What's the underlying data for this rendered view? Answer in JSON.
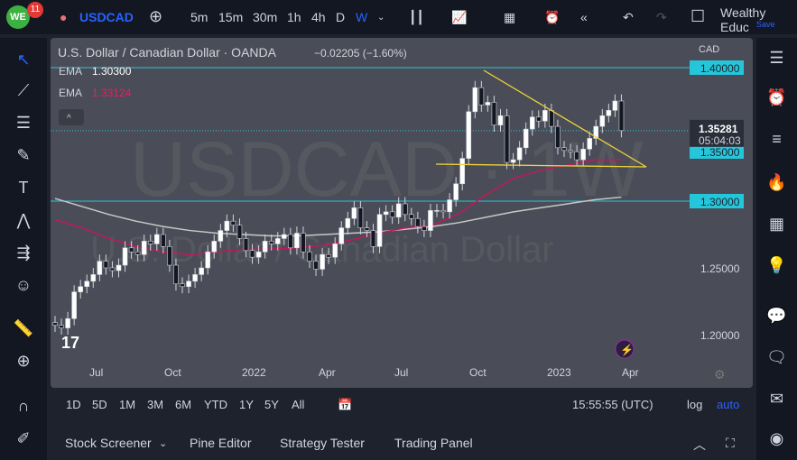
{
  "topbar": {
    "notifications": "11",
    "symbol": "USDCAD",
    "intervals": [
      "5m",
      "15m",
      "30m",
      "1h",
      "4h",
      "D",
      "W"
    ],
    "active_interval": "W",
    "user": "Wealthy Educ",
    "save": "Save",
    "accent": "#2962ff"
  },
  "legend": {
    "title": "U.S. Dollar / Canadian Dollar · OANDA",
    "change": "−0.02205 (−1.60%)",
    "ema1_label": "EMA",
    "ema1_value": "1.30300",
    "ema2_label": "EMA",
    "ema2_value": "1.33124"
  },
  "watermark": {
    "symbol": "USDCAD · 1W",
    "name": "U.S. Dollar / Canadian Dollar"
  },
  "price_axis": {
    "currency": "CAD",
    "labels": [
      "1.40000",
      "1.35000",
      "1.30000",
      "1.25000",
      "1.20000"
    ],
    "current_price": "1.35281",
    "countdown": "05:04:03"
  },
  "time_axis": [
    "Jul",
    "Oct",
    "2022",
    "Apr",
    "Jul",
    "Oct",
    "2023",
    "Apr"
  ],
  "timeframes": [
    "1D",
    "5D",
    "1M",
    "3M",
    "6M",
    "YTD",
    "1Y",
    "5Y",
    "All"
  ],
  "clock": "15:55:55 (UTC)",
  "log": "log",
  "auto": "auto",
  "bottom_tabs": [
    "Stock Screener",
    "Pine Editor",
    "Strategy Tester",
    "Trading Panel"
  ],
  "chart_data": {
    "type": "candlestick",
    "start": "2021-05-17",
    "interval": "1W",
    "ylim": [
      1.18,
      1.42
    ],
    "close": [
      1.207,
      1.205,
      1.212,
      1.232,
      1.236,
      1.24,
      1.245,
      1.255,
      1.25,
      1.248,
      1.252,
      1.265,
      1.262,
      1.26,
      1.27,
      1.268,
      1.275,
      1.266,
      1.252,
      1.238,
      1.236,
      1.24,
      1.245,
      1.25,
      1.262,
      1.27,
      1.278,
      1.285,
      1.282,
      1.272,
      1.263,
      1.258,
      1.262,
      1.27,
      1.268,
      1.272,
      1.275,
      1.265,
      1.276,
      1.262,
      1.255,
      1.249,
      1.26,
      1.258,
      1.268,
      1.28,
      1.287,
      1.295,
      1.28,
      1.278,
      1.266,
      1.29,
      1.292,
      1.288,
      1.298,
      1.29,
      1.287,
      1.281,
      1.278,
      1.293,
      1.293,
      1.292,
      1.301,
      1.313,
      1.332,
      1.367,
      1.385,
      1.372,
      1.374,
      1.357,
      1.364,
      1.329,
      1.331,
      1.34,
      1.354,
      1.363,
      1.36,
      1.368,
      1.356,
      1.34,
      1.338,
      1.337,
      1.331,
      1.339,
      1.347,
      1.356,
      1.364,
      1.368,
      1.375,
      1.35281
    ],
    "ema_white": [
      1.302,
      1.296,
      1.29,
      1.285,
      1.281,
      1.278,
      1.276,
      1.275,
      1.274,
      1.274,
      1.275,
      1.276,
      1.277,
      1.279,
      1.281,
      1.284,
      1.288,
      1.292,
      1.295,
      1.298,
      1.301,
      1.303
    ],
    "ema_pink": [
      1.286,
      1.28,
      1.272,
      1.266,
      1.262,
      1.26,
      1.262,
      1.264,
      1.264,
      1.265,
      1.267,
      1.271,
      1.276,
      1.28,
      1.282,
      1.291,
      1.305,
      1.317,
      1.323,
      1.327,
      1.331,
      1.331
    ],
    "horizontal_lines": [
      1.4,
      1.3
    ],
    "support_line": 1.346,
    "colors": {
      "up": "#ffffff",
      "down": "#131722",
      "ema_white": "#c8c8c8",
      "ema_pink": "#c2185b",
      "lines": "#26c6da",
      "trend": "#f0d43a"
    }
  }
}
